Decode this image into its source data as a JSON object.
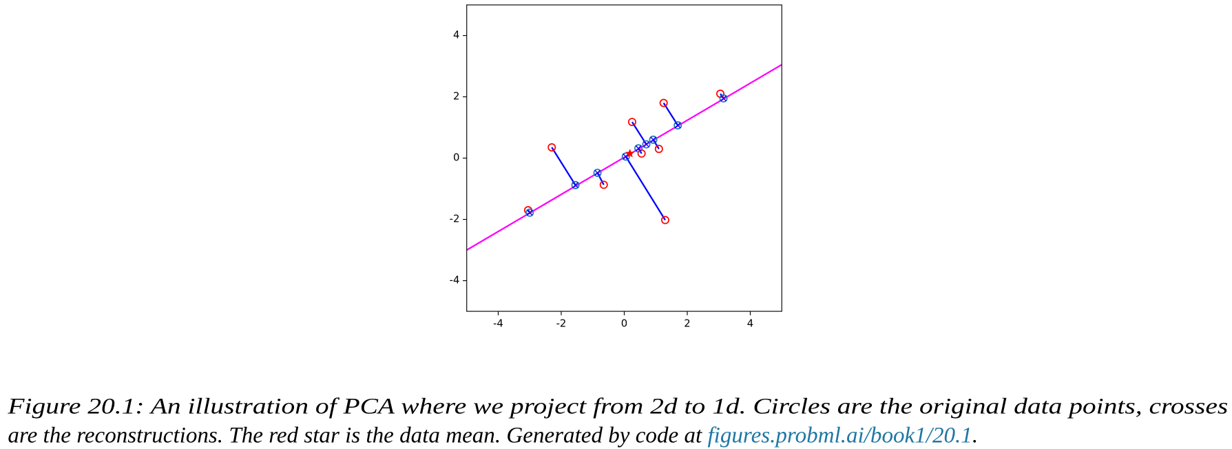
{
  "chart_data": {
    "type": "scatter",
    "xlim": [
      -5,
      5
    ],
    "ylim": [
      -5,
      5
    ],
    "xticks": [
      -4,
      -2,
      0,
      2,
      4
    ],
    "yticks": [
      -4,
      -2,
      0,
      2,
      4
    ],
    "series": [
      {
        "color": "#ff0000",
        "x": [
          -3.05,
          -2.3,
          -0.65,
          1.3,
          0.25,
          0.55,
          1.1,
          1.25,
          3.05
        ],
        "y": [
          -1.7,
          0.35,
          -0.87,
          -2.02,
          1.18,
          0.15,
          0.3,
          1.8,
          2.1
        ]
      },
      {
        "color": "#1f77b4",
        "x": [
          -3.0,
          -1.55,
          -0.85,
          0.05,
          0.7,
          0.45,
          0.92,
          1.7,
          3.15
        ],
        "y": [
          -1.78,
          -0.88,
          -0.48,
          0.05,
          0.45,
          0.32,
          0.6,
          1.07,
          1.95
        ]
      }
    ],
    "connector_color": "#0000ff",
    "line": {
      "color": "#ff00ff",
      "x": [
        -5,
        5
      ],
      "y": [
        -3.0,
        3.05
      ]
    },
    "mean": {
      "color": "#ff0000",
      "x": 0.18,
      "y": 0.15
    }
  },
  "caption": {
    "lines": [
      "Figure 20.1: An illustration of PCA where we project from 2d to 1d. Circles are the original data points, crosses",
      "are the reconstructions. The red star is the data mean. Generated by code at "
    ],
    "link": "figures.probml.ai/book1/20.1",
    "end": "."
  }
}
